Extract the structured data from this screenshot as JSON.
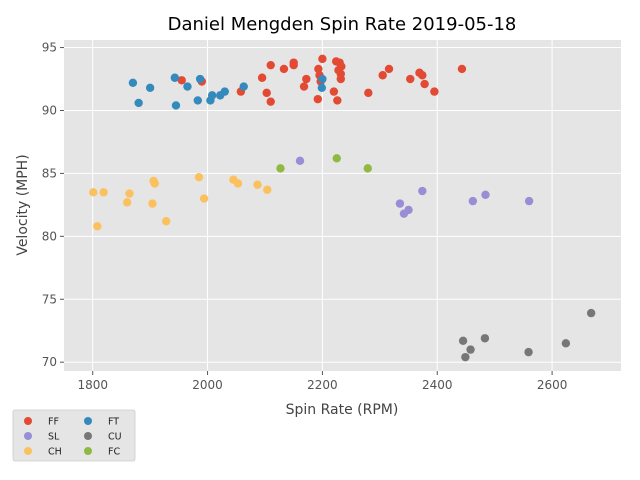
{
  "chart_data": {
    "type": "scatter",
    "title": "Daniel Mengden Spin Rate 2019-05-18",
    "xlabel": "Spin Rate (RPM)",
    "ylabel": "Velocity (MPH)",
    "xlim": [
      1750,
      2720
    ],
    "ylim": [
      69.3,
      95.6
    ],
    "xticks": [
      1800,
      2000,
      2200,
      2400,
      2600
    ],
    "yticks": [
      70,
      75,
      80,
      85,
      90,
      95
    ],
    "grid": true,
    "legend_position": "lower-left-outside",
    "series": [
      {
        "name": "FF",
        "color": "#E24A33",
        "x": [
          1955,
          1990,
          2058,
          2095,
          2103,
          2110,
          2110,
          2133,
          2150,
          2150,
          2168,
          2172,
          2192,
          2193,
          2195,
          2197,
          2200,
          2220,
          2224,
          2226,
          2228,
          2230,
          2232,
          2232,
          2233,
          2280,
          2305,
          2316,
          2369,
          2374,
          2378,
          2353,
          2395,
          2443
        ],
        "y": [
          92.4,
          92.3,
          91.5,
          92.6,
          91.4,
          90.7,
          93.6,
          93.3,
          93.6,
          93.8,
          91.9,
          92.5,
          90.9,
          93.3,
          92.8,
          92.3,
          94.1,
          91.5,
          93.9,
          90.8,
          93.2,
          93.8,
          92.9,
          92.5,
          93.5,
          91.4,
          92.8,
          93.3,
          93.0,
          92.8,
          92.1,
          92.5,
          91.5,
          93.3
        ]
      },
      {
        "name": "FT",
        "color": "#348ABD",
        "x": [
          1870,
          1880,
          1900,
          1943,
          1945,
          1965,
          1983,
          1987,
          2005,
          2008,
          2022,
          2030,
          2063,
          2199,
          2200
        ],
        "y": [
          92.2,
          90.6,
          91.8,
          92.6,
          90.4,
          91.9,
          90.8,
          92.5,
          90.8,
          91.2,
          91.2,
          91.5,
          91.9,
          91.8,
          92.5
        ]
      },
      {
        "name": "SL",
        "color": "#988ED5",
        "x": [
          2161,
          2335,
          2342,
          2350,
          2374,
          2462,
          2484,
          2560
        ],
        "y": [
          86.0,
          82.6,
          81.8,
          82.1,
          83.6,
          82.8,
          83.3,
          82.8
        ]
      },
      {
        "name": "CU",
        "color": "#777777",
        "x": [
          2445,
          2449,
          2458,
          2483,
          2559,
          2624,
          2668
        ],
        "y": [
          71.7,
          70.4,
          71.0,
          71.9,
          70.8,
          71.5,
          73.9
        ]
      },
      {
        "name": "CH",
        "color": "#FBC15E",
        "x": [
          1801,
          1808,
          1819,
          1860,
          1864,
          1904,
          1906,
          1908,
          1928,
          1985,
          1994,
          2045,
          2053,
          2087,
          2104
        ],
        "y": [
          83.5,
          80.8,
          83.5,
          82.7,
          83.4,
          82.6,
          84.4,
          84.2,
          81.2,
          84.7,
          83.0,
          84.5,
          84.2,
          84.1,
          83.7
        ]
      },
      {
        "name": "FC",
        "color": "#8EBA42",
        "x": [
          2127,
          2225,
          2279
        ],
        "y": [
          85.4,
          86.2,
          85.4
        ]
      }
    ]
  }
}
